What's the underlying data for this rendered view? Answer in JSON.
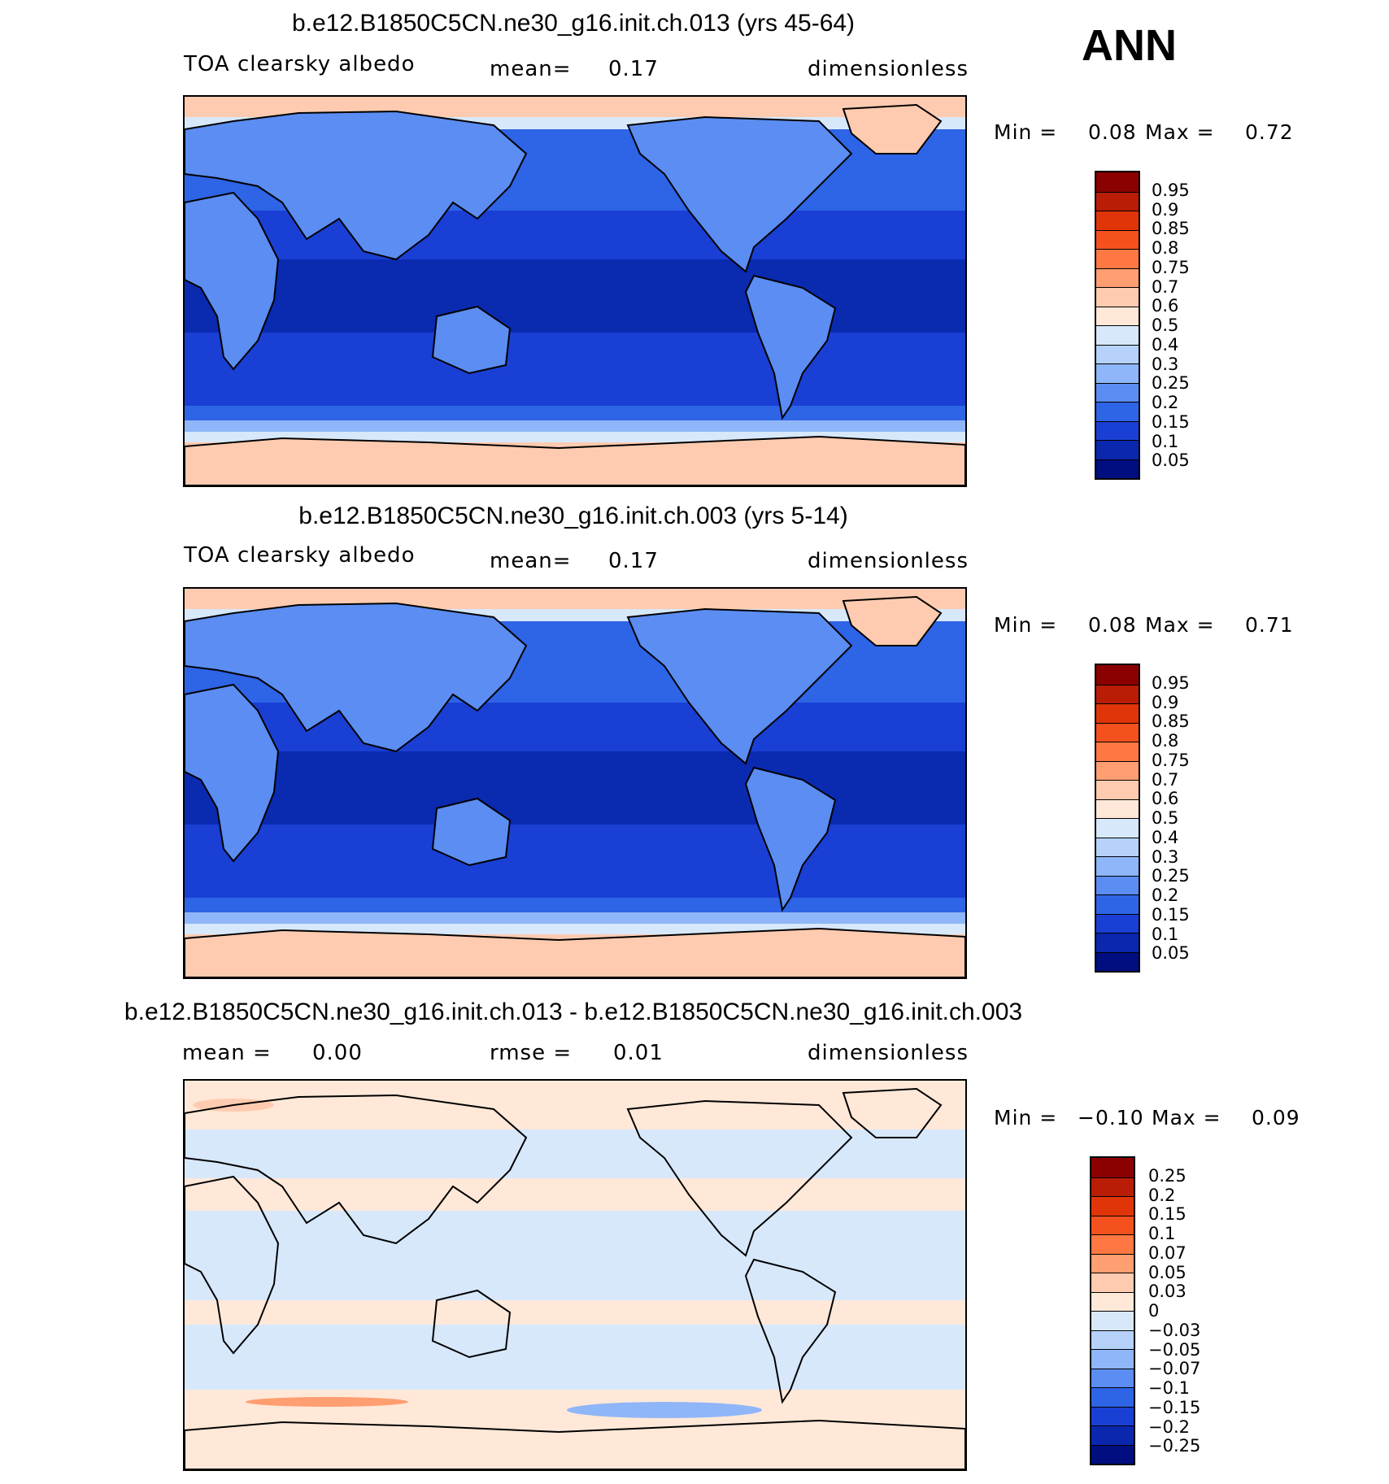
{
  "season": "ANN",
  "panels": [
    {
      "title": "b.e12.B1850C5CN.ne30_g16.init.ch.013 (yrs 45-64)",
      "left_label": "TOA clearsky albedo",
      "mid_label": "mean=",
      "mid_value": "0.17",
      "units": "dimensionless",
      "min_label": "Min =",
      "min_value": "0.08",
      "max_label": "Max =",
      "max_value": "0.72",
      "levels": [
        "0.95",
        "0.9",
        "0.85",
        "0.8",
        "0.75",
        "0.7",
        "0.6",
        "0.5",
        "0.4",
        "0.3",
        "0.25",
        "0.2",
        "0.15",
        "0.1",
        "0.05"
      ]
    },
    {
      "title": "b.e12.B1850C5CN.ne30_g16.init.ch.003 (yrs 5-14)",
      "left_label": "TOA clearsky albedo",
      "mid_label": "mean=",
      "mid_value": "0.17",
      "units": "dimensionless",
      "min_label": "Min =",
      "min_value": "0.08",
      "max_label": "Max =",
      "max_value": "0.71",
      "levels": [
        "0.95",
        "0.9",
        "0.85",
        "0.8",
        "0.75",
        "0.7",
        "0.6",
        "0.5",
        "0.4",
        "0.3",
        "0.25",
        "0.2",
        "0.15",
        "0.1",
        "0.05"
      ]
    },
    {
      "title": "b.e12.B1850C5CN.ne30_g16.init.ch.013 - b.e12.B1850C5CN.ne30_g16.init.ch.003",
      "left_label": "mean =",
      "left_value": "0.00",
      "mid_label": "rmse =",
      "mid_value": "0.01",
      "units": "dimensionless",
      "min_label": "Min =",
      "min_value": "−0.10",
      "max_label": "Max =",
      "max_value": "0.09",
      "levels": [
        "0.25",
        "0.2",
        "0.15",
        "0.1",
        "0.07",
        "0.05",
        "0.03",
        "0",
        "−0.03",
        "−0.05",
        "−0.07",
        "−0.1",
        "−0.15",
        "−0.2",
        "−0.25"
      ]
    }
  ],
  "colors": {
    "colorbar": [
      "#8b0000",
      "#b91d05",
      "#e03508",
      "#f4511e",
      "#ff7843",
      "#ff9e70",
      "#ffcbb0",
      "#ffe8d8",
      "#d7e8fb",
      "#b6d2fa",
      "#8fb6f8",
      "#5b8df2",
      "#2e64e6",
      "#1a3fd4",
      "#0a27ad",
      "#000e80"
    ],
    "ocean_trop": "#0a2ab0",
    "ocean_mid": "#1a3fd4",
    "ocean_high": "#2e64e6",
    "land": "#5b8df2",
    "snow": "#ffcbb0",
    "diff_pos": "#ffe8d8",
    "diff_neg": "#d7e8fb"
  },
  "chart_data": [
    {
      "type": "heatmap",
      "title": "b.e12.B1850C5CN.ne30_g16.init.ch.013 (yrs 45-64)",
      "variable": "TOA clearsky albedo",
      "units": "dimensionless",
      "mean": 0.17,
      "min": 0.08,
      "max": 0.72,
      "contour_levels": [
        0.05,
        0.1,
        0.15,
        0.2,
        0.25,
        0.3,
        0.4,
        0.5,
        0.6,
        0.7,
        0.75,
        0.8,
        0.85,
        0.9,
        0.95
      ]
    },
    {
      "type": "heatmap",
      "title": "b.e12.B1850C5CN.ne30_g16.init.ch.003 (yrs 5-14)",
      "variable": "TOA clearsky albedo",
      "units": "dimensionless",
      "mean": 0.17,
      "min": 0.08,
      "max": 0.71,
      "contour_levels": [
        0.05,
        0.1,
        0.15,
        0.2,
        0.25,
        0.3,
        0.4,
        0.5,
        0.6,
        0.7,
        0.75,
        0.8,
        0.85,
        0.9,
        0.95
      ]
    },
    {
      "type": "heatmap",
      "title": "b.e12.B1850C5CN.ne30_g16.init.ch.013 - b.e12.B1850C5CN.ne30_g16.init.ch.003",
      "units": "dimensionless",
      "mean": 0.0,
      "rmse": 0.01,
      "min": -0.1,
      "max": 0.09,
      "contour_levels": [
        -0.25,
        -0.2,
        -0.15,
        -0.1,
        -0.07,
        -0.05,
        -0.03,
        0,
        0.03,
        0.05,
        0.07,
        0.1,
        0.15,
        0.2,
        0.25
      ]
    }
  ]
}
